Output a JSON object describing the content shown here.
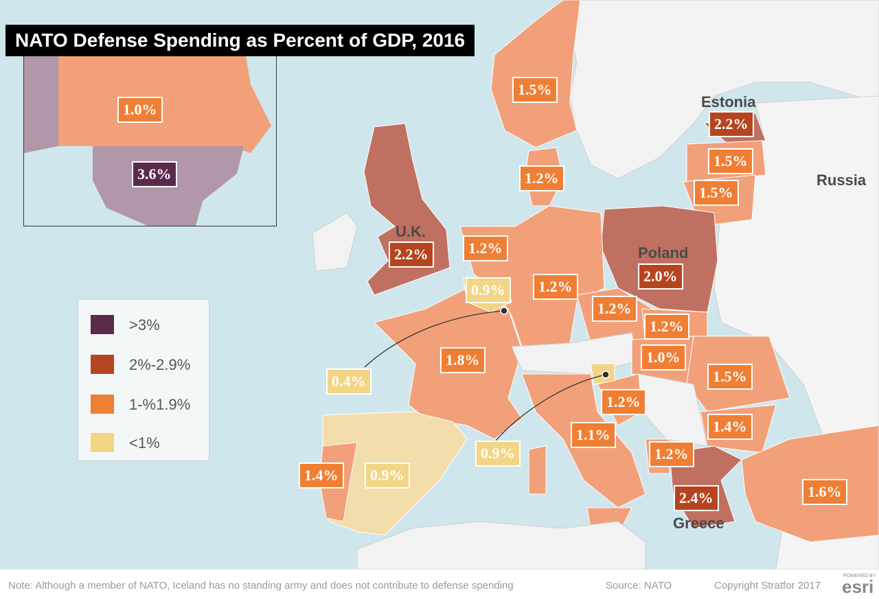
{
  "title": "NATO Defense Spending as Percent of GDP, 2016",
  "legend": [
    {
      "label": ">3%",
      "color": "#5a2a4c"
    },
    {
      "label": "2%-2.9%",
      "color": "#b54520"
    },
    {
      "label": "1-%1.9%",
      "color": "#ef7f34"
    },
    {
      "label": "<1%",
      "color": "#f3d586"
    }
  ],
  "country_names": {
    "estonia": "Estonia",
    "russia": "Russia",
    "uk": "U.K.",
    "poland": "Poland",
    "greece": "Greece"
  },
  "values": {
    "canada": "1.0%",
    "usa": "3.6%",
    "norway": "1.5%",
    "estonia": "2.2%",
    "latvia": "1.5%",
    "lithuania": "1.5%",
    "denmark": "1.2%",
    "uk": "2.2%",
    "netherlands": "1.2%",
    "poland": "2.0%",
    "belgium": "0.9%",
    "germany": "1.2%",
    "czech": "1.2%",
    "slovakia": "1.2%",
    "hungary": "1.0%",
    "france": "1.8%",
    "luxembourg": "0.4%",
    "romania": "1.5%",
    "croatia": "1.2%",
    "bulgaria": "1.4%",
    "italy": "1.1%",
    "slovenia": "0.9%",
    "albania": "1.2%",
    "portugal": "1.4%",
    "spain": "0.9%",
    "greece": "2.4%",
    "turkey": "1.6%"
  },
  "footer": {
    "note": "Note: Although a member of NATO, Iceland has no standing army and does not contribute to defense spending",
    "source": "Source: NATO",
    "copyright": "Copyright Stratfor 2017",
    "powered_by": "POWERED BY",
    "brand": "esri"
  }
}
